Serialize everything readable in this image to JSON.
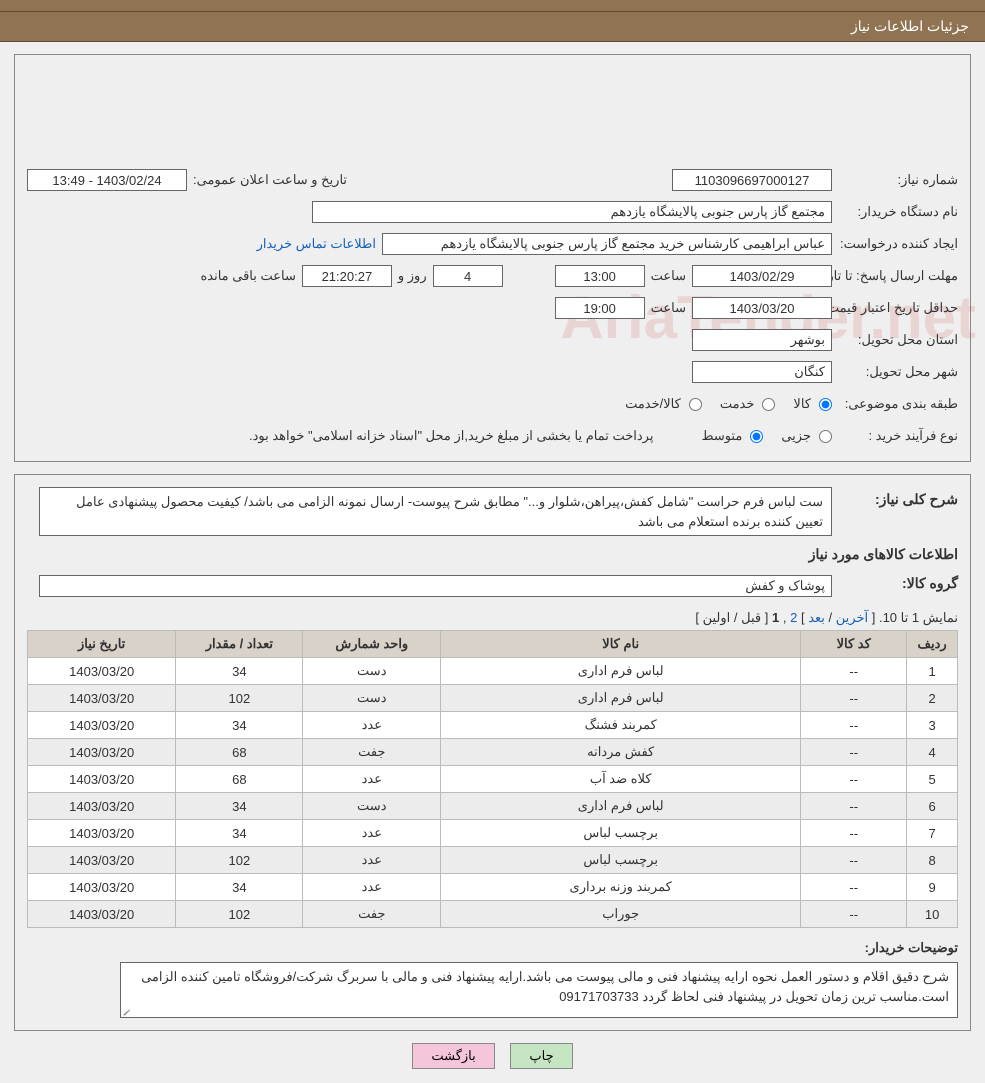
{
  "header": {
    "title": "جزئیات اطلاعات نیاز"
  },
  "labels": {
    "need_no": "شماره نیاز:",
    "announce": "تاریخ و ساعت اعلان عمومی:",
    "buyer_org": "نام دستگاه خریدار:",
    "requester": "ایجاد کننده درخواست:",
    "deadline": "مهلت ارسال پاسخ:",
    "until_date": "تا تاریخ:",
    "time": "ساعت",
    "days_and": "روز و",
    "hours_remain": "ساعت باقی مانده",
    "min_validity": "حداقل تاریخ اعتبار قیمت:",
    "province": "استان محل تحویل:",
    "city": "شهر محل تحویل:",
    "subject_cat": "طبقه بندی موضوعی:",
    "process_type": "نوع فرآیند خرید :",
    "overall_desc": "شرح کلی نیاز:",
    "items_info": "اطلاعات کالاهای مورد نیاز",
    "group": "گروه کالا:",
    "buyer_notes": "توضیحات خریدار:",
    "contact_link": "اطلاعات تماس خريدار"
  },
  "fields": {
    "need_no": "1103096697000127",
    "announce_dt": "1403/02/24 - 13:49",
    "buyer_org": "مجتمع گاز پارس جنوبی  پالایشگاه یازدهم",
    "requester": "عباس ابراهیمی کارشناس خرید مجتمع گاز پارس جنوبی  پالایشگاه یازدهم",
    "deadline_date": "1403/02/29",
    "deadline_time": "13:00",
    "days_left": "4",
    "time_left": "21:20:27",
    "min_validity_date": "1403/03/20",
    "min_validity_time": "19:00",
    "province": "بوشهر",
    "city": "کنگان",
    "category_opts": {
      "goods": "کالا",
      "service": "خدمت",
      "both": "کالا/خدمت"
    },
    "process_opts": {
      "partial": "جزیی",
      "medium": "متوسط"
    },
    "payment_note": "پرداخت تمام یا بخشی از مبلغ خرید,از محل \"اسناد خزانه اسلامی\" خواهد بود.",
    "overall_desc": "ست لباس فرم حراست \"شامل کفش،پیراهن،شلوار و...\" مطابق شرح پیوست- ارسال نمونه الزامی می باشد/ کیفیت محصول پیشنهادی عامل تعیین کننده برنده استعلام می باشد",
    "group": "پوشاک و کفش",
    "buyer_notes": "شرح دقیق اقلام و دستور العمل نحوه ارایه پیشنهاد فنی و مالی پیوست می باشد.ارایه پیشنهاد فنی و مالی با سربرگ شرکت/فروشگاه تامین کننده الزامی است.مناسب ترین زمان تحویل در پیشنهاد فنی لحاظ گردد 09171703733"
  },
  "pager": {
    "text_left": "نمایش 1 تا 10. [",
    "last": "آخرين",
    "sep1": " / ",
    "next": "بعد",
    "sep2": "] ",
    "p2": "2",
    "sep3": " ,",
    "p1": "1",
    "sep4": " [",
    "prev": "قبل",
    "sep5": " / ",
    "first": "اولين",
    "sep6": "]"
  },
  "table": {
    "headers": {
      "row": "ردیف",
      "code": "کد کالا",
      "name": "نام کالا",
      "unit": "واحد شمارش",
      "qty": "تعداد / مقدار",
      "date": "تاریخ نیاز"
    },
    "rows": [
      {
        "row": "1",
        "code": "--",
        "name": "لباس فرم اداری",
        "unit": "دست",
        "qty": "34",
        "date": "1403/03/20"
      },
      {
        "row": "2",
        "code": "--",
        "name": "لباس فرم اداری",
        "unit": "دست",
        "qty": "102",
        "date": "1403/03/20"
      },
      {
        "row": "3",
        "code": "--",
        "name": "کمربند فشنگ",
        "unit": "عدد",
        "qty": "34",
        "date": "1403/03/20"
      },
      {
        "row": "4",
        "code": "--",
        "name": "کفش مردانه",
        "unit": "جفت",
        "qty": "68",
        "date": "1403/03/20"
      },
      {
        "row": "5",
        "code": "--",
        "name": "کلاه ضد آب",
        "unit": "عدد",
        "qty": "68",
        "date": "1403/03/20"
      },
      {
        "row": "6",
        "code": "--",
        "name": "لباس فرم اداری",
        "unit": "دست",
        "qty": "34",
        "date": "1403/03/20"
      },
      {
        "row": "7",
        "code": "--",
        "name": "برچسب لباس",
        "unit": "عدد",
        "qty": "34",
        "date": "1403/03/20"
      },
      {
        "row": "8",
        "code": "--",
        "name": "برچسب لباس",
        "unit": "عدد",
        "qty": "102",
        "date": "1403/03/20"
      },
      {
        "row": "9",
        "code": "--",
        "name": "کمربند وزنه برداری",
        "unit": "عدد",
        "qty": "34",
        "date": "1403/03/20"
      },
      {
        "row": "10",
        "code": "--",
        "name": "جوراب",
        "unit": "جفت",
        "qty": "102",
        "date": "1403/03/20"
      }
    ]
  },
  "buttons": {
    "print": "چاپ",
    "back": "بازگشت"
  },
  "watermark": {
    "text": "AriaTender.net"
  },
  "colors": {
    "header_bg": "#8f7352",
    "th_bg": "#d9d2c8",
    "btn_print": "#c6e5c3",
    "btn_back": "#f5c5dc",
    "link": "#1560bd"
  }
}
